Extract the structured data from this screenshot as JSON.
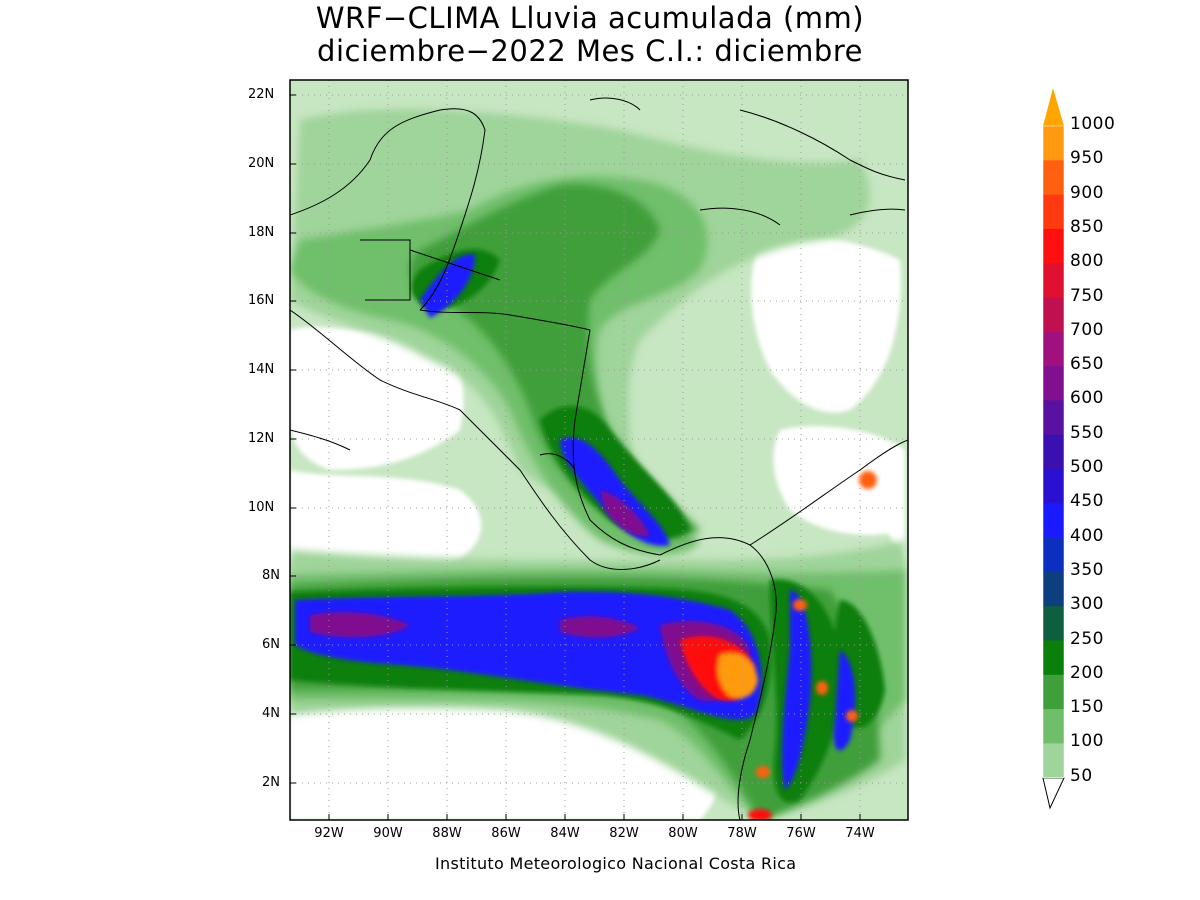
{
  "title": {
    "line1": "WRF−CLIMA Lluvia acumulada (mm)",
    "line2": "diciembre−2022 Mes C.I.: diciembre"
  },
  "map": {
    "lat_labels": [
      "22N",
      "20N",
      "18N",
      "16N",
      "14N",
      "12N",
      "10N",
      "8N",
      "6N",
      "4N",
      "2N"
    ],
    "lon_labels": [
      "92W",
      "90W",
      "88W",
      "86W",
      "84W",
      "82W",
      "80W",
      "78W",
      "76W",
      "74W"
    ],
    "credit": "Instituto Meteorologico Nacional Costa Rica"
  },
  "colorbar": {
    "labels": [
      "1000",
      "950",
      "900",
      "850",
      "800",
      "750",
      "700",
      "650",
      "600",
      "550",
      "500",
      "450",
      "400",
      "350",
      "300",
      "250",
      "200",
      "150",
      "100",
      "50"
    ],
    "colors": {
      "c50": "#c7e6c2",
      "c100": "#9fd49a",
      "c150": "#6fbf6a",
      "c200": "#3f9f3a",
      "c250": "#0a7f0a",
      "c300": "#0d5f3f",
      "c350": "#0d3f7f",
      "c400": "#0d2fbf",
      "c450": "#1a1aff",
      "c500": "#2a10d0",
      "c550": "#3a10b0",
      "c600": "#5a10a0",
      "c650": "#80108f",
      "c700": "#a0107f",
      "c750": "#c0104f",
      "c800": "#df1030",
      "c850": "#ff1010",
      "c900": "#ff3a10",
      "c950": "#ff6010",
      "c1000": "#ff9a10",
      "cover": "#ffa500"
    }
  }
}
